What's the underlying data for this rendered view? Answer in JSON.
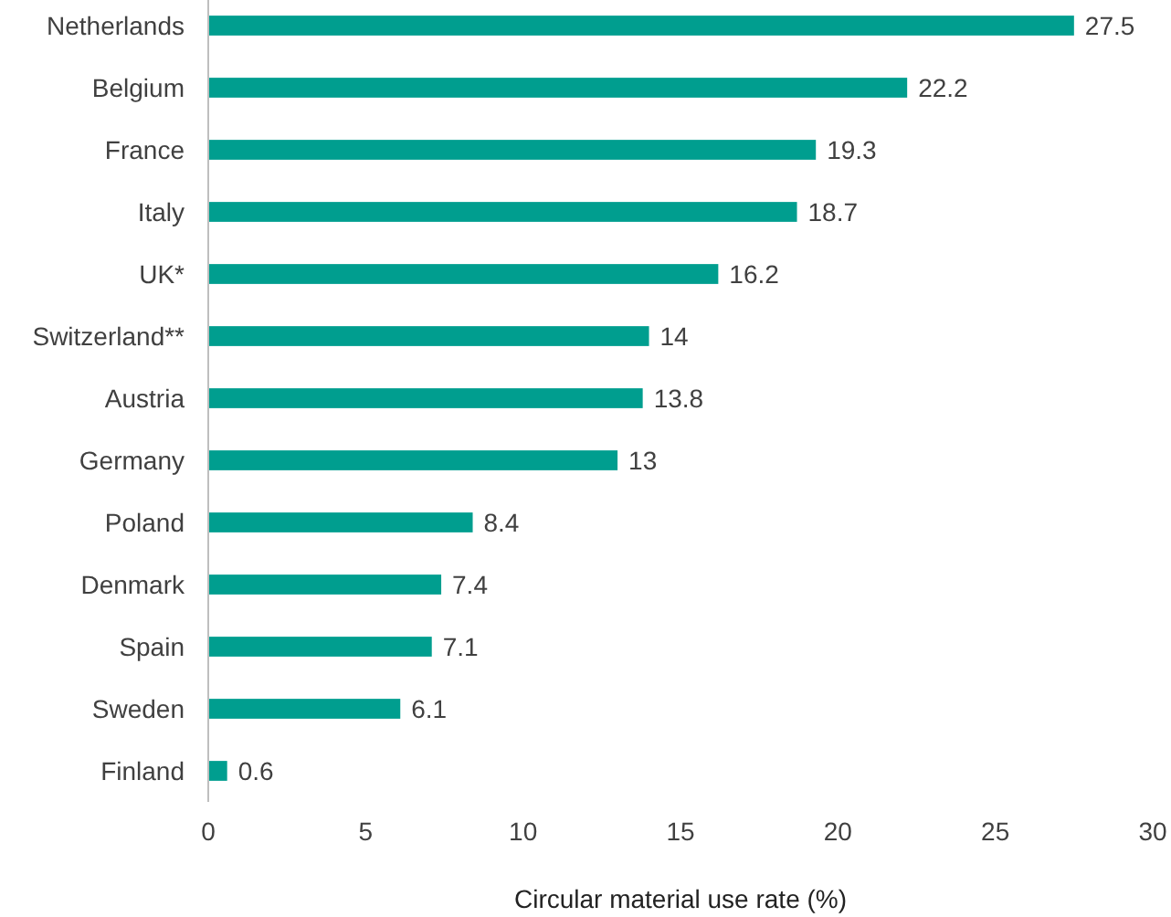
{
  "chart_data": {
    "type": "bar",
    "orientation": "horizontal",
    "xlabel": "Circular material use rate (%)",
    "categories": [
      "Netherlands",
      "Belgium",
      "France",
      "Italy",
      "UK*",
      "Switzerland**",
      "Austria",
      "Germany",
      "Poland",
      "Denmark",
      "Spain",
      "Sweden",
      "Finland"
    ],
    "values": [
      27.5,
      22.2,
      19.3,
      18.7,
      16.2,
      14,
      13.8,
      13,
      8.4,
      7.4,
      7.1,
      6.1,
      0.6
    ],
    "color": "#009e8f",
    "xlim": [
      0,
      30
    ],
    "xticks": [
      0,
      5,
      10,
      15,
      20,
      25,
      30
    ],
    "data_labels": true,
    "grid": false
  }
}
